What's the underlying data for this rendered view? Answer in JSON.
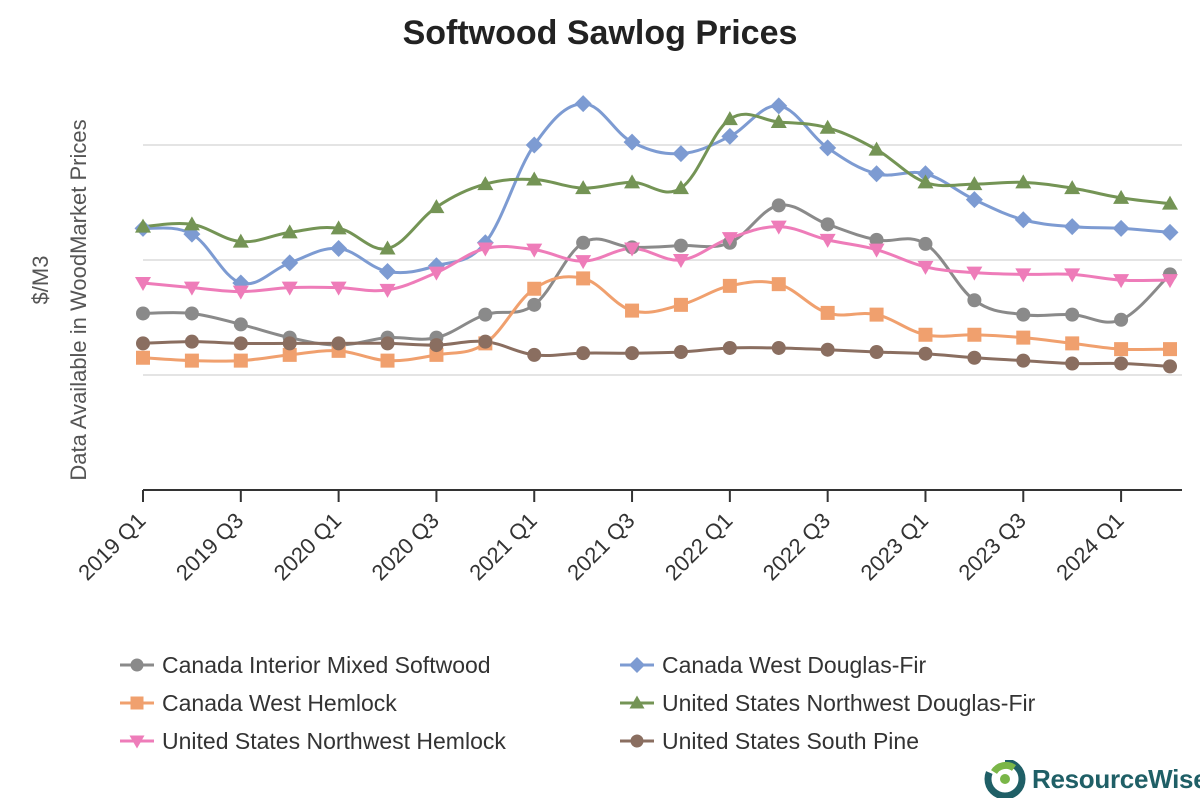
{
  "chart_data": {
    "type": "line",
    "title": "Softwood Sawlog Prices",
    "ylabel_line1": "$/M3",
    "ylabel_line2": "Data Available in WoodMarket Prices",
    "xlabel": "",
    "ylim": [
      0,
      8
    ],
    "y_ticks_shown": false,
    "grid": "horizontal",
    "legend_position": "bottom",
    "categories": [
      "2019 Q1",
      "2019 Q2",
      "2019 Q3",
      "2019 Q4",
      "2020 Q1",
      "2020 Q2",
      "2020 Q3",
      "2020 Q4",
      "2021 Q1",
      "2021 Q2",
      "2021 Q3",
      "2021 Q4",
      "2022 Q1",
      "2022 Q2",
      "2022 Q3",
      "2022 Q4",
      "2023 Q1",
      "2023 Q2",
      "2023 Q3",
      "2023 Q4",
      "2024 Q1",
      "2024 Q2"
    ],
    "tick_labels": [
      "2019 Q1",
      "2019 Q3",
      "2020 Q1",
      "2020 Q3",
      "2021 Q1",
      "2021 Q3",
      "2022 Q1",
      "2022 Q3",
      "2023 Q1",
      "2023 Q3",
      "2024 Q1"
    ],
    "series": [
      {
        "name": "Canada Interior Mixed Softwood",
        "color": "#8a8a8a",
        "marker": "circle",
        "values": [
          3.07,
          3.07,
          2.88,
          2.65,
          2.52,
          2.65,
          2.65,
          3.05,
          3.22,
          4.3,
          4.22,
          4.25,
          4.3,
          4.95,
          4.62,
          4.35,
          4.28,
          3.3,
          3.05,
          3.05,
          2.96,
          3.75
        ]
      },
      {
        "name": "Canada West Douglas-Fir",
        "color": "#7d9bd2",
        "marker": "diamond",
        "values": [
          4.55,
          4.45,
          3.6,
          3.95,
          4.2,
          3.8,
          3.9,
          4.3,
          6.0,
          6.72,
          6.05,
          5.85,
          6.15,
          6.68,
          5.95,
          5.5,
          5.5,
          5.05,
          4.7,
          4.58,
          4.55,
          4.48
        ]
      },
      {
        "name": "Canada West Hemlock",
        "color": "#f0a06e",
        "marker": "square",
        "values": [
          2.3,
          2.25,
          2.25,
          2.35,
          2.42,
          2.25,
          2.35,
          2.55,
          3.5,
          3.68,
          3.12,
          3.22,
          3.55,
          3.58,
          3.08,
          3.05,
          2.7,
          2.7,
          2.65,
          2.55,
          2.45,
          2.45
        ]
      },
      {
        "name": "United States Northwest Douglas-Fir",
        "color": "#749455",
        "marker": "triangle",
        "values": [
          4.58,
          4.62,
          4.32,
          4.48,
          4.55,
          4.2,
          4.92,
          5.32,
          5.4,
          5.25,
          5.35,
          5.25,
          6.45,
          6.4,
          6.3,
          5.92,
          5.35,
          5.32,
          5.35,
          5.25,
          5.08,
          4.98
        ]
      },
      {
        "name": "United States Northwest Hemlock",
        "color": "#ee7cb9",
        "marker": "triangle-down",
        "values": [
          3.6,
          3.52,
          3.45,
          3.52,
          3.52,
          3.48,
          3.78,
          4.2,
          4.18,
          3.98,
          4.2,
          4.0,
          4.38,
          4.58,
          4.35,
          4.18,
          3.88,
          3.78,
          3.75,
          3.75,
          3.65,
          3.65
        ]
      },
      {
        "name": "United States South Pine",
        "color": "#8a6e60",
        "marker": "circle",
        "values": [
          2.55,
          2.58,
          2.55,
          2.55,
          2.55,
          2.55,
          2.52,
          2.58,
          2.35,
          2.38,
          2.38,
          2.4,
          2.47,
          2.47,
          2.44,
          2.4,
          2.37,
          2.3,
          2.25,
          2.2,
          2.2,
          2.15
        ]
      }
    ]
  },
  "brand": {
    "name": "ResourceWise",
    "color": "#1f5f66",
    "accent": "#7ab648"
  }
}
